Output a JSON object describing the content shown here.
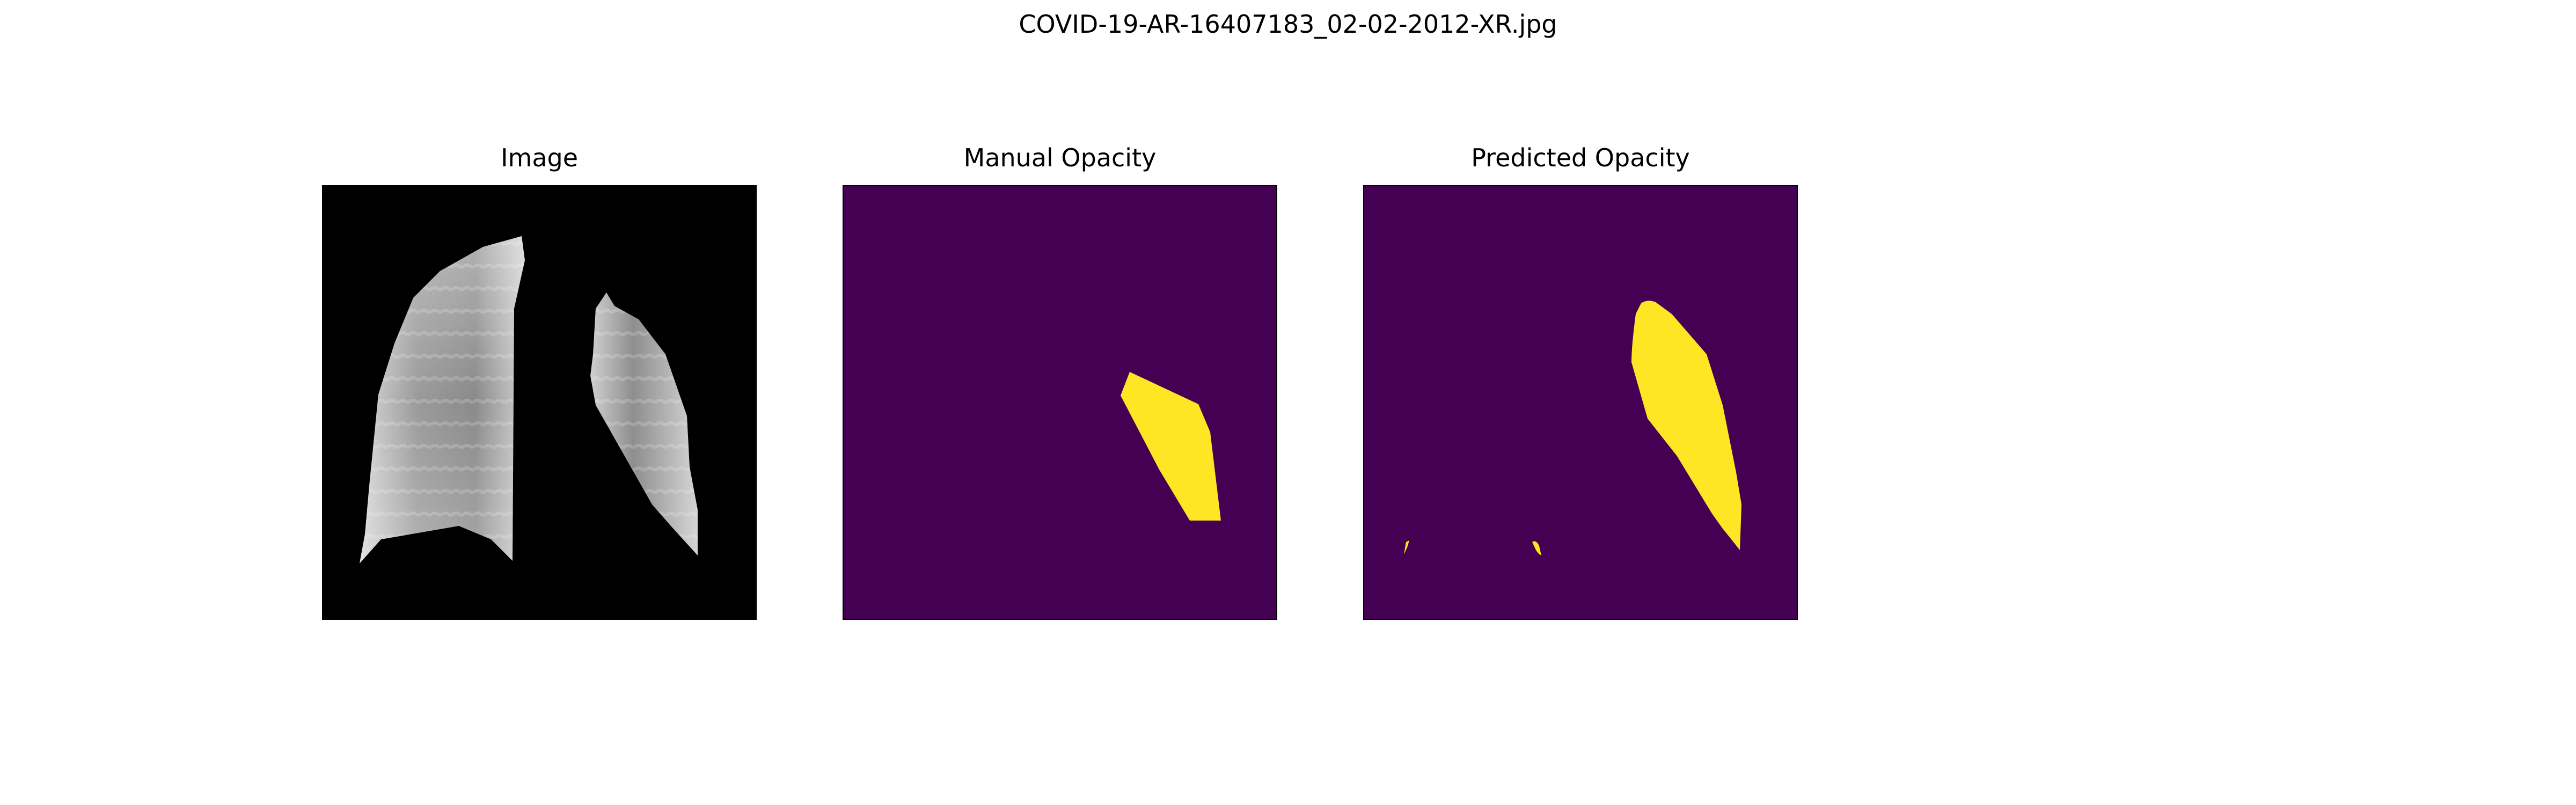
{
  "figure": {
    "title": "COVID-19-AR-16407183_02-02-2012-XR.jpg"
  },
  "panels": [
    {
      "title": "Image"
    },
    {
      "title": "Manual Opacity"
    },
    {
      "title": "Predicted Opacity"
    }
  ],
  "colors": {
    "mask_background": "#440154",
    "mask_foreground": "#fde725",
    "image_background": "#000000",
    "frame": "#000000"
  }
}
